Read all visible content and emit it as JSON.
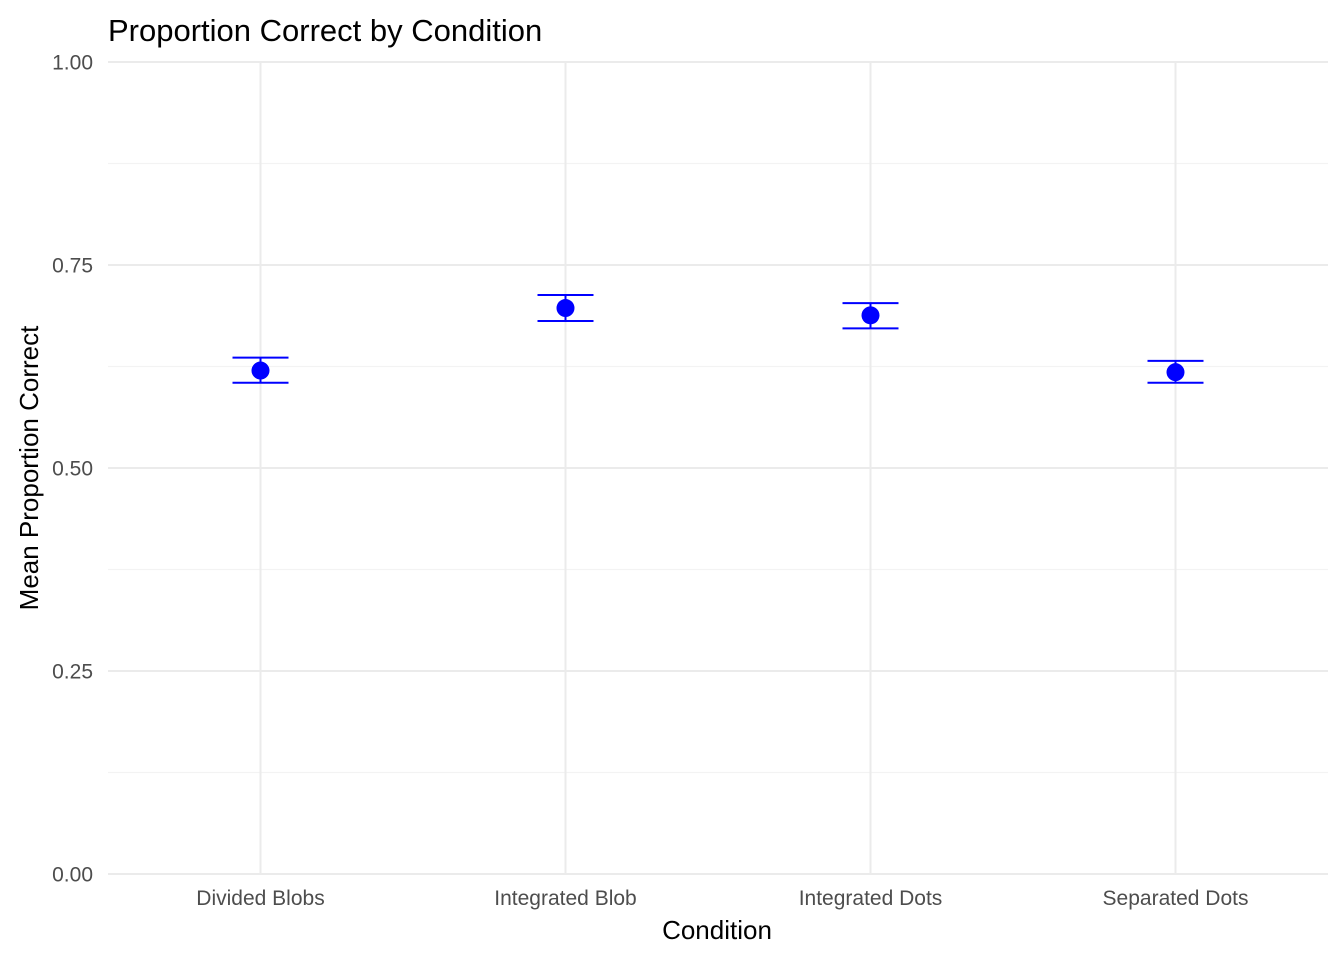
{
  "chart_data": {
    "type": "scatter",
    "title": "Proportion Correct by Condition",
    "xlabel": "Condition",
    "ylabel": "Mean Proportion Correct",
    "categories": [
      "Divided Blobs",
      "Integrated Blob",
      "Integrated Dots",
      "Separated Dots"
    ],
    "series": [
      {
        "values": [
          0.62,
          0.697,
          0.688,
          0.618
        ],
        "error_lower": [
          0.605,
          0.681,
          0.672,
          0.605
        ],
        "error_upper": [
          0.636,
          0.713,
          0.703,
          0.632
        ],
        "color": "#0000ff"
      }
    ],
    "ylim": [
      0,
      1
    ],
    "y_ticks": [
      "0.00",
      "0.25",
      "0.50",
      "0.75",
      "1.00"
    ],
    "grid": true,
    "legend": "none"
  }
}
